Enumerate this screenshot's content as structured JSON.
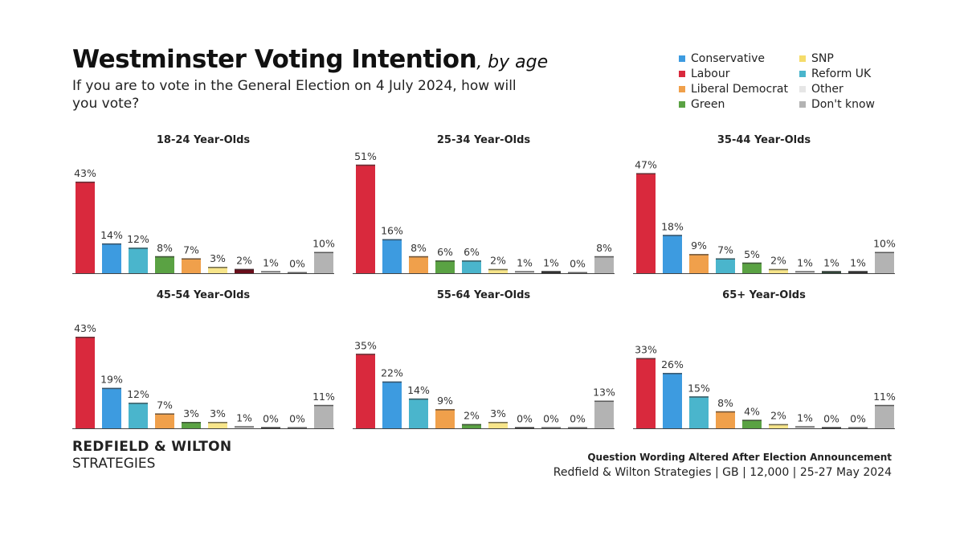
{
  "header": {
    "title": "Westminster Voting Intention",
    "title_suffix": ", by age",
    "subtitle": "If you are to vote in the General Election on 4 July 2024, how will you vote?"
  },
  "legend": [
    {
      "label": "Conservative",
      "color": "#3d9be0"
    },
    {
      "label": "SNP",
      "color": "#f5dc6a"
    },
    {
      "label": "Labour",
      "color": "#d9293d"
    },
    {
      "label": "Reform UK",
      "color": "#4ab5cc"
    },
    {
      "label": "Liberal Democrat",
      "color": "#f0a04b"
    },
    {
      "label": "Other",
      "color": "#e6e6e6"
    },
    {
      "label": "Green",
      "color": "#5aa243"
    },
    {
      "label": "Don't know",
      "color": "#b3b3b3"
    }
  ],
  "chart_data": [
    {
      "type": "bar",
      "title": "18-24 Year-Olds",
      "labels": [
        "43%",
        "14%",
        "12%",
        "8%",
        "7%",
        "3%",
        "2%",
        "1%",
        "0%",
        "10%"
      ],
      "values": [
        43,
        14,
        12,
        8,
        7,
        3,
        2,
        1,
        0,
        10
      ],
      "colors": [
        "#d9293d",
        "#3d9be0",
        "#4ab5cc",
        "#5aa243",
        "#f0a04b",
        "#f7e58a",
        "#6b0d1a",
        "#d9d9d9",
        "#cccccc",
        "#b3b3b3"
      ]
    },
    {
      "type": "bar",
      "title": "25-34 Year-Olds",
      "labels": [
        "51%",
        "16%",
        "8%",
        "6%",
        "6%",
        "2%",
        "1%",
        "1%",
        "0%",
        "8%"
      ],
      "values": [
        51,
        16,
        8,
        6,
        6,
        2,
        1,
        1,
        0,
        8
      ],
      "colors": [
        "#d9293d",
        "#3d9be0",
        "#f0a04b",
        "#5aa243",
        "#4ab5cc",
        "#f7e58a",
        "#d9d9d9",
        "#333333",
        "#cccccc",
        "#b3b3b3"
      ]
    },
    {
      "type": "bar",
      "title": "35-44 Year-Olds",
      "labels": [
        "47%",
        "18%",
        "9%",
        "7%",
        "5%",
        "2%",
        "1%",
        "1%",
        "1%",
        "10%"
      ],
      "values": [
        47,
        18,
        9,
        7,
        5,
        2,
        1,
        1,
        1,
        10
      ],
      "colors": [
        "#d9293d",
        "#3d9be0",
        "#f0a04b",
        "#4ab5cc",
        "#5aa243",
        "#f7e58a",
        "#d9d9d9",
        "#2f4a3a",
        "#333333",
        "#b3b3b3"
      ]
    },
    {
      "type": "bar",
      "title": "45-54 Year-Olds",
      "labels": [
        "43%",
        "19%",
        "12%",
        "7%",
        "3%",
        "3%",
        "1%",
        "0%",
        "0%",
        "11%"
      ],
      "values": [
        43,
        19,
        12,
        7,
        3,
        3,
        1,
        0,
        0,
        11
      ],
      "colors": [
        "#d9293d",
        "#3d9be0",
        "#4ab5cc",
        "#f0a04b",
        "#5aa243",
        "#f7e58a",
        "#d9d9d9",
        "#333333",
        "#cccccc",
        "#b3b3b3"
      ]
    },
    {
      "type": "bar",
      "title": "55-64 Year-Olds",
      "labels": [
        "35%",
        "22%",
        "14%",
        "9%",
        "2%",
        "3%",
        "0%",
        "0%",
        "0%",
        "13%"
      ],
      "values": [
        35,
        22,
        14,
        9,
        2,
        3,
        0,
        0,
        0,
        13
      ],
      "colors": [
        "#d9293d",
        "#3d9be0",
        "#4ab5cc",
        "#f0a04b",
        "#5aa243",
        "#f7e58a",
        "#333333",
        "#cccccc",
        "#cccccc",
        "#b3b3b3"
      ]
    },
    {
      "type": "bar",
      "title": "65+ Year-Olds",
      "labels": [
        "33%",
        "26%",
        "15%",
        "8%",
        "4%",
        "2%",
        "1%",
        "0%",
        "0%",
        "11%"
      ],
      "values": [
        33,
        26,
        15,
        8,
        4,
        2,
        1,
        0,
        0,
        11
      ],
      "colors": [
        "#d9293d",
        "#3d9be0",
        "#4ab5cc",
        "#f0a04b",
        "#5aa243",
        "#f7e58a",
        "#d9d9d9",
        "#333333",
        "#cccccc",
        "#b3b3b3"
      ]
    }
  ],
  "branding": {
    "line1": "REDFIELD & WILTON",
    "line2": "STRATEGIES"
  },
  "footer": {
    "note": "Question Wording Altered After Election Announcement",
    "source": "Redfield & Wilton Strategies | GB | 12,000 | 25-27 May 2024"
  }
}
